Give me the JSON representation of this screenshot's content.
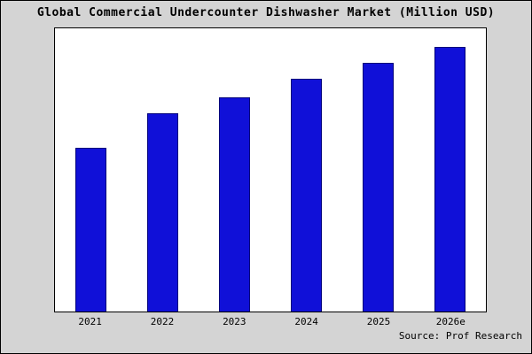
{
  "title": "Global Commercial Undercounter Dishwasher Market (Million USD)",
  "source": "Source: Prof Research",
  "colors": {
    "background": "#d4d4d4",
    "plot_background": "#ffffff",
    "bar_fill": "#1010d8",
    "bar_border": "#00007a",
    "text": "#000000"
  },
  "chart_data": {
    "type": "bar",
    "title": "Global Commercial Undercounter Dishwasher Market (Million USD)",
    "categories": [
      "2021",
      "2022",
      "2023",
      "2024",
      "2025",
      "2026e"
    ],
    "values": [
      62,
      75,
      81,
      88,
      94,
      100
    ],
    "units": "relative height (max bar = 100); no y-axis scale shown",
    "xlabel": "",
    "ylabel": "",
    "ylim": [
      0,
      107
    ],
    "grid": false,
    "legend": false,
    "caption": "Source: Prof Research"
  }
}
